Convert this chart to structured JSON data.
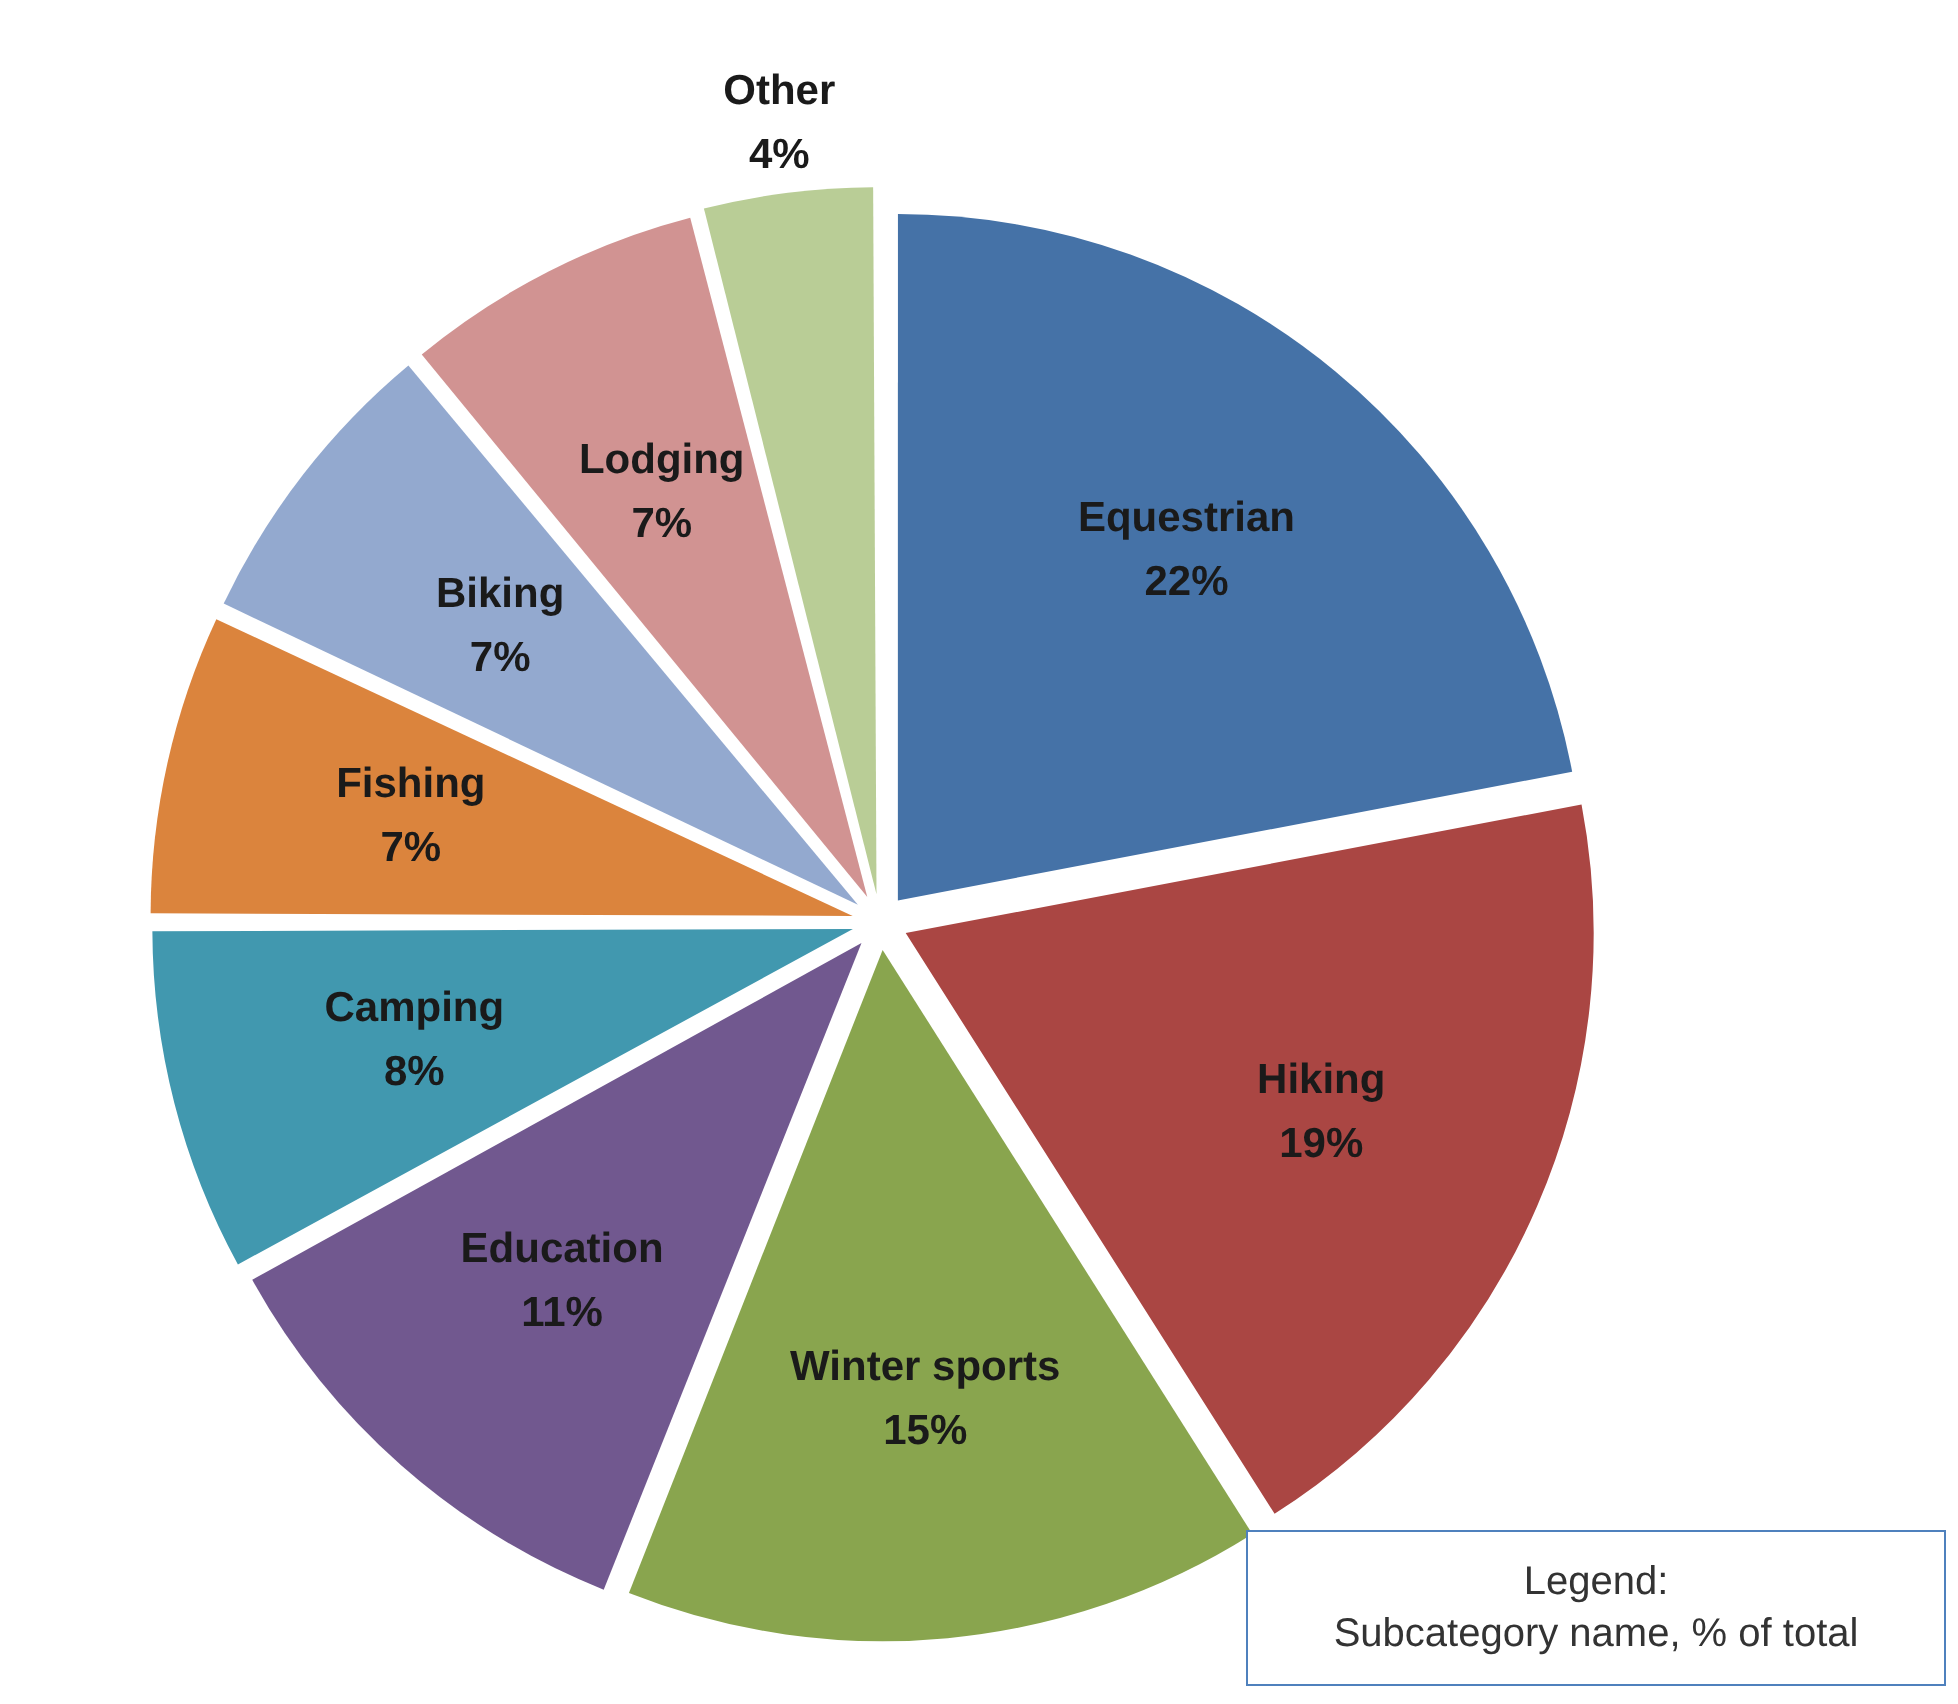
{
  "chart_data": {
    "type": "pie",
    "categories": [
      "Equestrian",
      "Hiking",
      "Winter sports",
      "Education",
      "Camping",
      "Fishing",
      "Biking",
      "Lodging",
      "Other"
    ],
    "values": [
      22,
      19,
      15,
      11,
      8,
      7,
      7,
      7,
      4
    ],
    "value_labels": [
      "22%",
      "19%",
      "15%",
      "11%",
      "8%",
      "7%",
      "7%",
      "7%",
      "4%"
    ],
    "colors": [
      "#4572a7",
      "#aa4643",
      "#89a54e",
      "#71588f",
      "#4198af",
      "#db843d",
      "#93a9cf",
      "#d19392",
      "#b9cd96"
    ],
    "annotations": [
      "Legend:\nSubcategory name, % of total"
    ],
    "legend": false
  }
}
